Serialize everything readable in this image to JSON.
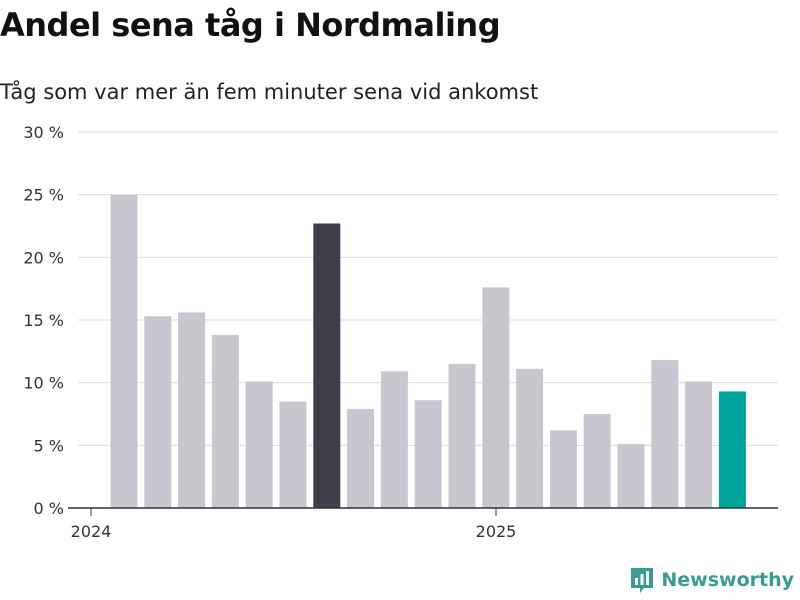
{
  "title": "Andel sena tåg i Nordmaling",
  "subtitle": "Tåg som var mer än fem minuter sena vid ankomst",
  "brand": "Newsworthy",
  "colors": {
    "default_bar": "#c8c7cf",
    "highlight_bar": "#403e4b",
    "latest_bar": "#00a39a",
    "brand": "#3a9b93"
  },
  "chart_data": {
    "type": "bar",
    "title": "Andel sena tåg i Nordmaling",
    "subtitle": "Tåg som var mer än fem minuter sena vid ankomst",
    "xlabel": "",
    "ylabel": "",
    "ylim": [
      0,
      30
    ],
    "yticks": [
      "0 %",
      "5 %",
      "10 %",
      "15 %",
      "20 %",
      "25 %",
      "30 %"
    ],
    "xticks": [
      "2024",
      "2025"
    ],
    "grid": true,
    "values": [
      25.0,
      15.3,
      15.6,
      13.8,
      10.1,
      8.5,
      22.7,
      7.9,
      10.9,
      8.6,
      11.5,
      17.6,
      11.1,
      6.2,
      7.5,
      5.1,
      11.8,
      10.1,
      9.3
    ],
    "highlight": {
      "index": 6,
      "color": "#403e4b"
    },
    "latest": {
      "index": 18,
      "color": "#00a39a"
    }
  }
}
